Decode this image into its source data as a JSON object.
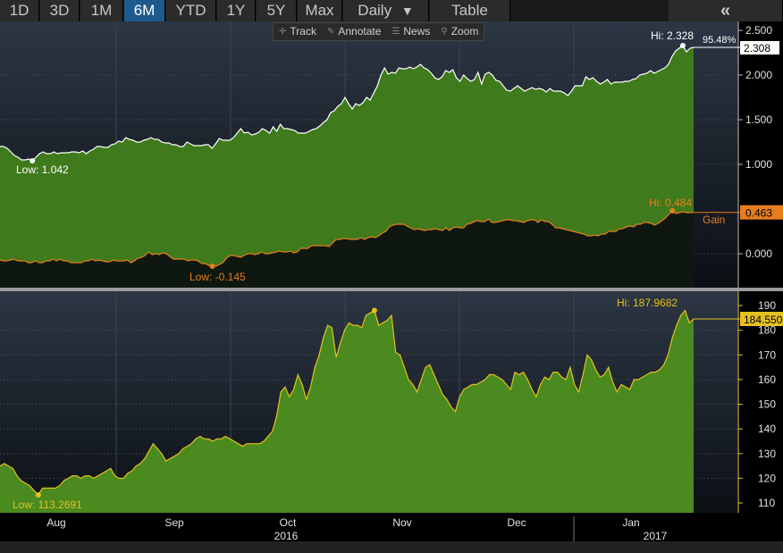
{
  "toolbar": {
    "ranges": [
      "1D",
      "3D",
      "1M",
      "6M",
      "YTD",
      "1Y",
      "5Y",
      "Max"
    ],
    "active_range": "6M",
    "frequency": "Daily",
    "frequency_icon": "triangle-down-icon",
    "table_label": "Table",
    "collapse_icon": "double-chevron-left-icon"
  },
  "subtoolbar": {
    "track": "Track",
    "annotate": "Annotate",
    "news": "News",
    "zoom": "Zoom"
  },
  "colors": {
    "area_fill": "#3f7a1c",
    "upper_line": "#ffffff",
    "gain_line": "#e87d1e",
    "lower_line": "#e6c020",
    "panel_bg_top": "#2a3441",
    "panel_bg_bottom": "#0d1116",
    "active_tab": "#1f5a8e"
  },
  "chart_data": [
    {
      "type": "area",
      "panel": "upper",
      "y_axis_ticks": [
        "2.500",
        "2.000",
        "1.500",
        "1.000",
        "0.000"
      ],
      "ylim": [
        -0.2,
        2.55
      ],
      "series": [
        {
          "values": [
            1.2,
            1.2,
            1.18,
            1.14,
            1.1,
            1.08,
            1.05,
            1.05,
            1.06,
            1.04,
            1.08,
            1.12,
            1.14,
            1.12,
            1.12,
            1.14,
            1.12,
            1.13,
            1.13,
            1.13,
            1.14,
            1.14,
            1.13,
            1.15,
            1.12,
            1.15,
            1.17,
            1.2,
            1.2,
            1.19,
            1.19,
            1.22,
            1.23,
            1.26,
            1.25,
            1.3,
            1.28,
            1.27,
            1.25,
            1.25,
            1.27,
            1.28,
            1.3,
            1.28,
            1.28,
            1.25,
            1.24,
            1.24,
            1.22,
            1.22,
            1.2,
            1.2,
            1.25,
            1.23,
            1.21,
            1.21,
            1.21,
            1.22,
            1.22,
            1.18,
            1.23,
            1.29,
            1.27,
            1.27,
            1.27,
            1.3,
            1.35,
            1.4,
            1.35,
            1.36,
            1.33,
            1.34,
            1.36,
            1.4,
            1.38,
            1.35,
            1.42,
            1.37,
            1.45,
            1.4,
            1.4,
            1.39,
            1.38,
            1.35,
            1.35,
            1.35,
            1.37,
            1.39,
            1.4,
            1.43,
            1.47,
            1.5,
            1.58,
            1.6,
            1.65,
            1.68,
            1.75,
            1.68,
            1.62,
            1.68,
            1.66,
            1.69,
            1.75,
            1.72,
            1.8,
            1.88,
            2.0,
            2.08,
            2.01,
            2.03,
            2.02,
            2.08,
            2.07,
            2.07,
            2.09,
            2.07,
            2.09,
            2.12,
            2.08,
            2.06,
            2.02,
            1.97,
            1.95,
            1.98,
            2.05,
            2.03,
            2.06,
            1.97,
            1.93,
            2.0,
            1.96,
            1.93,
            1.95,
            2.03,
            1.9,
            2.01,
            2.03,
            2.0,
            1.94,
            1.93,
            1.88,
            1.83,
            1.82,
            1.85,
            1.88,
            1.85,
            1.82,
            1.84,
            1.86,
            1.84,
            1.85,
            1.84,
            1.81,
            1.85,
            1.82,
            1.82,
            1.82,
            1.8,
            1.77,
            1.82,
            1.88,
            1.88,
            1.88,
            1.98,
            1.95,
            1.97,
            1.93,
            1.9,
            1.92,
            1.95,
            1.9,
            1.92,
            1.92,
            1.92,
            1.93,
            1.93,
            1.95,
            1.96,
            2.0,
            2.01,
            2.02,
            2.05,
            2.02,
            2.04,
            2.06,
            2.08,
            2.12,
            2.21,
            2.27,
            2.3,
            2.33,
            2.26,
            2.3,
            2.31
          ],
          "low_label": "Low: 1.042",
          "high_label": "Hi: 2.328",
          "last_value_label": "2.308",
          "pct_label": "95.48%"
        },
        {
          "name": "Gain",
          "values": [
            -0.07,
            -0.08,
            -0.08,
            -0.07,
            -0.06,
            -0.08,
            -0.08,
            -0.08,
            -0.1,
            -0.1,
            -0.08,
            -0.1,
            -0.1,
            -0.08,
            -0.08,
            -0.06,
            -0.08,
            -0.06,
            -0.08,
            -0.08,
            -0.1,
            -0.1,
            -0.1,
            -0.1,
            -0.08,
            -0.08,
            -0.06,
            -0.08,
            -0.07,
            -0.08,
            -0.09,
            -0.09,
            -0.07,
            -0.08,
            -0.08,
            -0.08,
            -0.07,
            -0.1,
            -0.08,
            -0.05,
            -0.04,
            -0.02,
            0.02,
            -0.01,
            0.0,
            -0.01,
            0.01,
            0.0,
            -0.03,
            -0.06,
            -0.06,
            -0.06,
            -0.06,
            -0.08,
            -0.07,
            -0.07,
            -0.08,
            -0.11,
            -0.11,
            -0.13,
            -0.14,
            -0.14,
            -0.12,
            -0.1,
            -0.05,
            -0.02,
            -0.02,
            -0.03,
            -0.04,
            -0.02,
            0.0,
            0.0,
            -0.01,
            0.0,
            0.02,
            0.0,
            0.0,
            0.01,
            0.02,
            0.03,
            0.02,
            0.02,
            0.03,
            0.01,
            0.02,
            0.06,
            0.06,
            0.06,
            0.09,
            0.09,
            0.09,
            0.09,
            0.09,
            0.08,
            0.12,
            0.16,
            0.16,
            0.17,
            0.17,
            0.16,
            0.16,
            0.16,
            0.18,
            0.16,
            0.18,
            0.19,
            0.18,
            0.2,
            0.23,
            0.25,
            0.3,
            0.32,
            0.33,
            0.33,
            0.33,
            0.31,
            0.29,
            0.27,
            0.28,
            0.27,
            0.26,
            0.27,
            0.27,
            0.28,
            0.27,
            0.26,
            0.29,
            0.26,
            0.29,
            0.3,
            0.29,
            0.29,
            0.33,
            0.34,
            0.36,
            0.37,
            0.36,
            0.36,
            0.39,
            0.35,
            0.35,
            0.36,
            0.37,
            0.38,
            0.38,
            0.37,
            0.37,
            0.36,
            0.35,
            0.37,
            0.38,
            0.38,
            0.35,
            0.38,
            0.36,
            0.36,
            0.33,
            0.29,
            0.29,
            0.28,
            0.27,
            0.26,
            0.25,
            0.24,
            0.23,
            0.22,
            0.2,
            0.2,
            0.21,
            0.2,
            0.22,
            0.22,
            0.25,
            0.25,
            0.25,
            0.28,
            0.28,
            0.3,
            0.31,
            0.3,
            0.33,
            0.33,
            0.35,
            0.35,
            0.34,
            0.32,
            0.34,
            0.37,
            0.4,
            0.44,
            0.48,
            0.45,
            0.46,
            0.47,
            0.46,
            0.46,
            0.463
          ],
          "low_label": "Low: -0.145",
          "high_label": "Hi: 0.484",
          "last_value_label": "0.463"
        }
      ]
    },
    {
      "type": "area",
      "panel": "lower",
      "y_axis_ticks": [
        "190",
        "180",
        "170",
        "160",
        "150",
        "140",
        "130",
        "120",
        "110"
      ],
      "ylim": [
        105,
        193
      ],
      "series": [
        {
          "values": [
            125,
            126,
            125,
            124,
            121,
            119,
            118,
            117,
            115,
            113.27,
            116,
            116,
            116,
            116,
            117,
            119,
            120,
            121,
            121,
            120,
            121,
            121,
            120,
            121,
            122,
            123,
            124,
            121,
            120,
            120,
            122,
            123,
            125,
            126,
            128,
            131,
            134,
            132,
            130,
            127,
            128,
            129,
            130,
            132,
            133,
            134,
            136,
            137,
            136,
            136,
            135,
            136,
            136,
            137,
            136,
            135,
            134,
            133,
            134,
            134,
            134,
            134,
            135,
            137,
            139,
            145,
            155,
            157,
            153,
            156,
            162,
            158,
            152,
            157,
            165,
            170,
            177,
            182,
            181,
            169,
            175,
            180,
            183,
            182,
            182,
            181,
            186,
            187,
            188,
            182,
            183,
            184,
            186,
            171,
            170,
            165,
            160,
            158,
            155,
            160,
            165,
            166,
            162,
            158,
            154,
            152,
            149,
            147,
            153,
            156,
            157,
            158,
            158,
            159,
            160,
            162,
            162,
            161,
            160,
            158,
            156,
            163,
            162,
            163,
            160,
            156,
            153,
            158,
            161,
            160,
            163,
            163,
            161,
            160,
            165,
            158,
            155,
            162,
            170,
            168,
            164,
            161,
            162,
            165,
            159,
            155,
            158,
            157,
            156,
            160,
            160,
            161,
            162,
            163,
            163,
            164,
            166,
            170,
            177,
            182,
            186,
            188,
            183,
            184.55
          ],
          "low_label": "Low: 113.2691",
          "high_label": "Hi: 187.9682",
          "last_value_label": "184.550"
        }
      ]
    }
  ],
  "x_axis": {
    "months": [
      "Aug",
      "Sep",
      "Oct",
      "Nov",
      "Dec",
      "Jan"
    ],
    "years": [
      "2016",
      "2017"
    ]
  }
}
